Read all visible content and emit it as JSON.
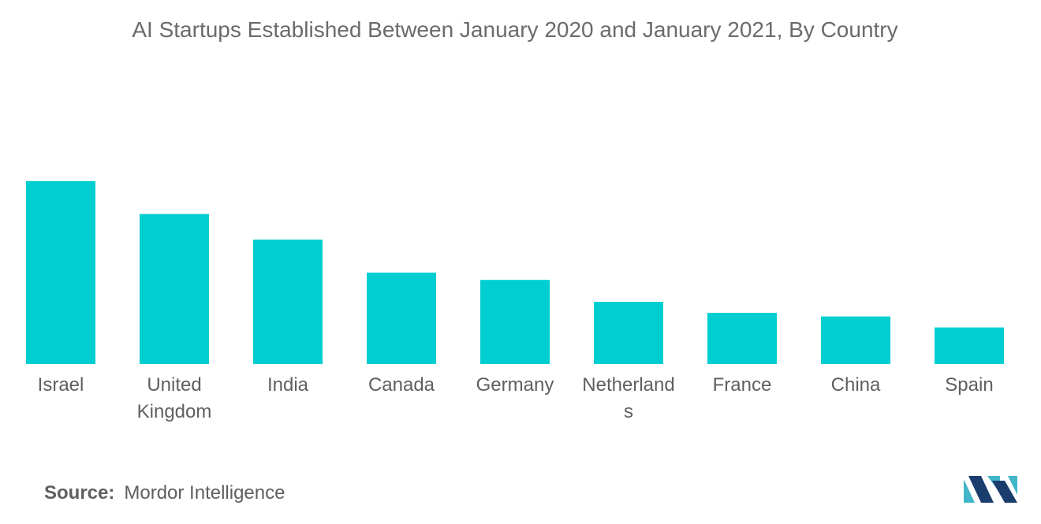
{
  "chart_data": {
    "type": "bar",
    "title": "AI Startups Established Between January 2020 and January 2021, By Country",
    "categories": [
      "Israel",
      "United Kingdom",
      "India",
      "Canada",
      "Germany",
      "Netherlands",
      "France",
      "China",
      "Spain"
    ],
    "category_label_lines": [
      [
        "Israel"
      ],
      [
        "United",
        "Kingdom"
      ],
      [
        "India"
      ],
      [
        "Canada"
      ],
      [
        "Germany"
      ],
      [
        "Netherland",
        "s"
      ],
      [
        "France"
      ],
      [
        "China"
      ],
      [
        "Spain"
      ]
    ],
    "values": [
      100,
      82,
      68,
      50,
      46,
      34,
      28,
      26,
      20
    ],
    "ylim": [
      0,
      115
    ],
    "xlabel": "",
    "ylabel": "",
    "grid": false,
    "legend": "none",
    "bar_color": "#00ced1"
  },
  "source": {
    "label": "Source:",
    "text": "Mordor Intelligence"
  },
  "colors": {
    "title": "#6b6b6b",
    "text": "#5f5f5f",
    "logo_dark": "#1b3d6e",
    "logo_light": "#41b6c9"
  }
}
